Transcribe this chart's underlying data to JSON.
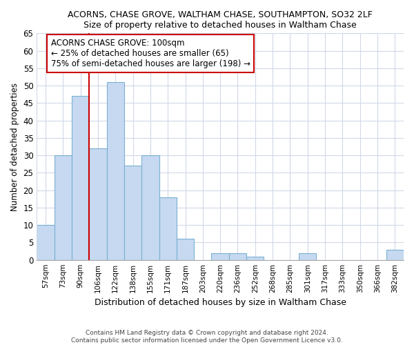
{
  "title": "ACORNS, CHASE GROVE, WALTHAM CHASE, SOUTHAMPTON, SO32 2LF",
  "subtitle": "Size of property relative to detached houses in Waltham Chase",
  "xlabel": "Distribution of detached houses by size in Waltham Chase",
  "ylabel": "Number of detached properties",
  "bar_labels": [
    "57sqm",
    "73sqm",
    "90sqm",
    "106sqm",
    "122sqm",
    "138sqm",
    "155sqm",
    "171sqm",
    "187sqm",
    "203sqm",
    "220sqm",
    "236sqm",
    "252sqm",
    "268sqm",
    "285sqm",
    "301sqm",
    "317sqm",
    "333sqm",
    "350sqm",
    "366sqm",
    "382sqm"
  ],
  "bar_values": [
    10,
    30,
    47,
    32,
    51,
    27,
    30,
    18,
    6,
    0,
    2,
    2,
    1,
    0,
    0,
    2,
    0,
    0,
    0,
    0,
    3
  ],
  "bar_color": "#c6d9f0",
  "bar_edge_color": "#7ab0d4",
  "marker_line_color": "#cc0000",
  "annotation_box_edge_color": "#cc0000",
  "marker_label": "ACORNS CHASE GROVE: 100sqm",
  "pct_smaller_text": "← 25% of detached houses are smaller (65)",
  "pct_larger_text": "75% of semi-detached houses are larger (198) →",
  "ylim": [
    0,
    65
  ],
  "yticks": [
    0,
    5,
    10,
    15,
    20,
    25,
    30,
    35,
    40,
    45,
    50,
    55,
    60,
    65
  ],
  "footer_line1": "Contains HM Land Registry data © Crown copyright and database right 2024.",
  "footer_line2": "Contains public sector information licensed under the Open Government Licence v3.0.",
  "bg_color": "#ffffff",
  "plot_bg_color": "#ffffff",
  "grid_color": "#d0d8e8"
}
